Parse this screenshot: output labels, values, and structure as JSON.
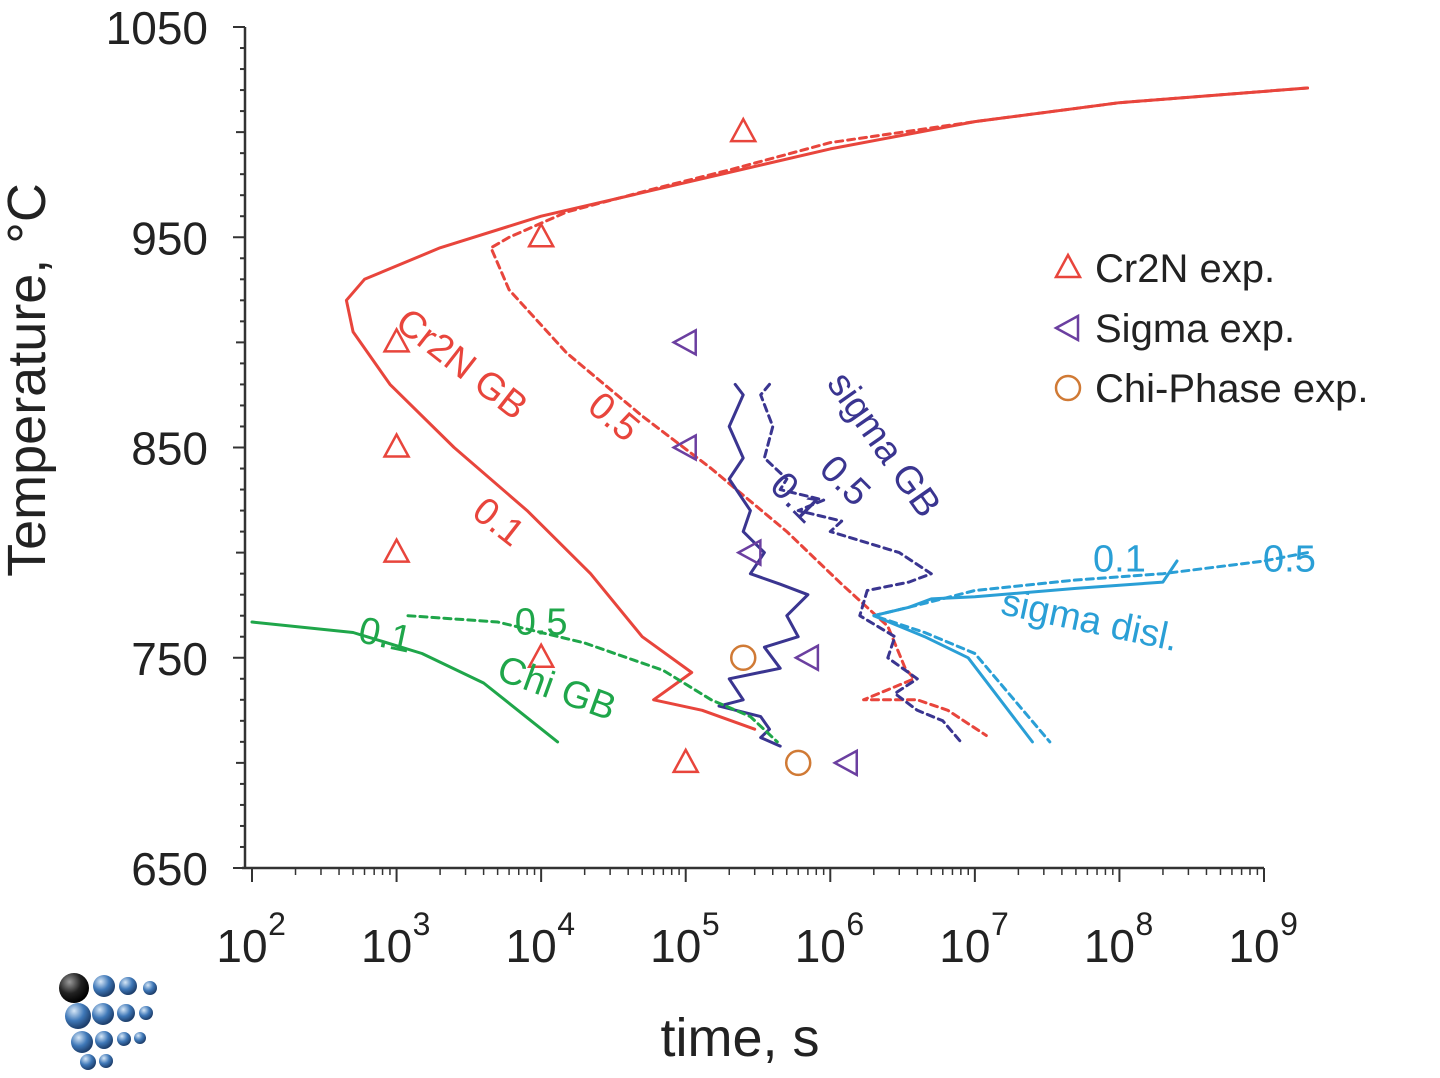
{
  "chart_data": {
    "type": "scatter",
    "title": "",
    "xlabel": "time, s",
    "ylabel": "Temperature, °C",
    "xscale": "log",
    "xlim": [
      100,
      1000000000
    ],
    "ylim": [
      650,
      1050
    ],
    "yticks": [
      650,
      750,
      850,
      950,
      1050
    ],
    "xticks": [
      {
        "value": 100,
        "base": "10",
        "exp": "2"
      },
      {
        "value": 1000,
        "base": "10",
        "exp": "3"
      },
      {
        "value": 10000,
        "base": "10",
        "exp": "4"
      },
      {
        "value": 100000,
        "base": "10",
        "exp": "5"
      },
      {
        "value": 1000000,
        "base": "10",
        "exp": "6"
      },
      {
        "value": 10000000,
        "base": "10",
        "exp": "7"
      },
      {
        "value": 100000000,
        "base": "10",
        "exp": "8"
      },
      {
        "value": 1000000000,
        "base": "10",
        "exp": "9"
      }
    ],
    "grid": false,
    "legend_position": "top-right",
    "colors": {
      "cr2n": "#e8453c",
      "sigma_gb": "#3a3590",
      "sigma_disl": "#2a9fd6",
      "chi": "#1fa64a",
      "sigma_exp": "#6b3fa0",
      "chi_exp": "#d07a35",
      "axis": "#333333"
    },
    "legend": [
      {
        "label": "Cr2N exp.",
        "marker": "triangle-up",
        "color": "#e8453c"
      },
      {
        "label": "Sigma exp.",
        "marker": "triangle-left",
        "color": "#6b3fa0"
      },
      {
        "label": "Chi-Phase exp.",
        "marker": "circle",
        "color": "#d07a35"
      }
    ],
    "scatter_series": [
      {
        "name": "Cr2N exp.",
        "marker": "triangle-up",
        "color": "#e8453c",
        "points": [
          [
            250000,
            1000
          ],
          [
            10000,
            950
          ],
          [
            1000,
            900
          ],
          [
            1000,
            850
          ],
          [
            1000,
            800
          ],
          [
            10000,
            750
          ],
          [
            100000,
            700
          ]
        ]
      },
      {
        "name": "Sigma exp.",
        "marker": "triangle-left",
        "color": "#6b3fa0",
        "points": [
          [
            100000,
            900
          ],
          [
            100000,
            850
          ],
          [
            280000,
            800
          ],
          [
            700000,
            750
          ],
          [
            1300000,
            700
          ]
        ]
      },
      {
        "name": "Chi-Phase exp.",
        "marker": "circle",
        "color": "#d07a35",
        "points": [
          [
            250000,
            750
          ],
          [
            600000,
            700
          ]
        ]
      }
    ],
    "line_series": [
      {
        "curve": "Cr2N GB",
        "fraction": "0.1",
        "color": "#e8453c",
        "dashed": false,
        "points": [
          [
            2000000000,
            1021
          ],
          [
            100000000,
            1014
          ],
          [
            10000000,
            1005
          ],
          [
            1000000,
            992
          ],
          [
            100000,
            976
          ],
          [
            10000,
            960
          ],
          [
            2000,
            945
          ],
          [
            600,
            930
          ],
          [
            450,
            920
          ],
          [
            500,
            905
          ],
          [
            900,
            880
          ],
          [
            2500,
            850
          ],
          [
            8000,
            820
          ],
          [
            22000,
            790
          ],
          [
            50000,
            760
          ],
          [
            110000,
            743
          ],
          [
            60000,
            730
          ],
          [
            130000,
            725
          ],
          [
            300000,
            716
          ]
        ]
      },
      {
        "curve": "Cr2N GB",
        "fraction": "0.5",
        "color": "#e8453c",
        "dashed": true,
        "points": [
          [
            2000000000,
            1021
          ],
          [
            100000000,
            1014
          ],
          [
            10000000,
            1005
          ],
          [
            1000000,
            995
          ],
          [
            200000,
            982
          ],
          [
            60000,
            973
          ],
          [
            15000,
            962
          ],
          [
            6000,
            950
          ],
          [
            4500,
            945
          ],
          [
            6000,
            925
          ],
          [
            15000,
            895
          ],
          [
            50000,
            865
          ],
          [
            150000,
            840
          ],
          [
            500000,
            810
          ],
          [
            1200000,
            785
          ],
          [
            2500000,
            765
          ],
          [
            3300000,
            745
          ],
          [
            3800000,
            740
          ],
          [
            1700000,
            730
          ],
          [
            4000000,
            730
          ],
          [
            6500000,
            725
          ],
          [
            12000000,
            713
          ]
        ]
      },
      {
        "curve": "sigma GB",
        "fraction": "0.1",
        "color": "#3a3590",
        "dashed": false,
        "points": [
          [
            220000,
            880
          ],
          [
            250000,
            875
          ],
          [
            200000,
            860
          ],
          [
            250000,
            845
          ],
          [
            200000,
            835
          ],
          [
            280000,
            820
          ],
          [
            250000,
            810
          ],
          [
            350000,
            800
          ],
          [
            280000,
            790
          ],
          [
            450000,
            785
          ],
          [
            700000,
            780
          ],
          [
            500000,
            770
          ],
          [
            600000,
            760
          ],
          [
            350000,
            755
          ],
          [
            450000,
            745
          ],
          [
            200000,
            740
          ],
          [
            250000,
            730
          ],
          [
            170000,
            727
          ],
          [
            330000,
            722
          ],
          [
            380000,
            716
          ],
          [
            330000,
            712
          ],
          [
            450000,
            708
          ]
        ]
      },
      {
        "curve": "sigma GB",
        "fraction": "0.5",
        "color": "#3a3590",
        "dashed": true,
        "points": [
          [
            380000,
            880
          ],
          [
            330000,
            875
          ],
          [
            400000,
            860
          ],
          [
            350000,
            845
          ],
          [
            500000,
            835
          ],
          [
            450000,
            830
          ],
          [
            900000,
            825
          ],
          [
            600000,
            820
          ],
          [
            1200000,
            815
          ],
          [
            1000000,
            810
          ],
          [
            3000000,
            800
          ],
          [
            5000000,
            790
          ],
          [
            3500000,
            786
          ],
          [
            1800000,
            782
          ],
          [
            1600000,
            770
          ],
          [
            2800000,
            760
          ],
          [
            2500000,
            750
          ],
          [
            4000000,
            740
          ],
          [
            2800000,
            733
          ],
          [
            4000000,
            725
          ],
          [
            6000000,
            720
          ],
          [
            8000000,
            710
          ]
        ]
      },
      {
        "curve": "sigma disl.",
        "fraction": "0.1",
        "color": "#2a9fd6",
        "dashed": false,
        "points": [
          [
            250000000,
            796
          ],
          [
            200000000,
            786
          ],
          [
            50000000,
            783
          ],
          [
            10000000,
            779
          ],
          [
            5000000,
            778
          ],
          [
            3500000,
            774
          ],
          [
            2000000,
            770
          ],
          [
            4500000,
            760
          ],
          [
            9000000,
            750
          ],
          [
            25000000,
            710
          ]
        ]
      },
      {
        "curve": "sigma disl.",
        "fraction": "0.5",
        "color": "#2a9fd6",
        "dashed": true,
        "points": [
          [
            2000000000,
            800
          ],
          [
            1000000000,
            796
          ],
          [
            200000000,
            790
          ],
          [
            50000000,
            787
          ],
          [
            10000000,
            782
          ],
          [
            4000000,
            775
          ],
          [
            2000000,
            770
          ],
          [
            4500000,
            762
          ],
          [
            10000000,
            752
          ],
          [
            33000000,
            710
          ]
        ]
      },
      {
        "curve": "Chi GB",
        "fraction": "0.1",
        "color": "#1fa64a",
        "dashed": false,
        "points": [
          [
            100,
            767
          ],
          [
            500,
            762
          ],
          [
            1500,
            752
          ],
          [
            4000,
            738
          ],
          [
            13000,
            710
          ]
        ]
      },
      {
        "curve": "Chi GB",
        "fraction": "0.5",
        "color": "#1fa64a",
        "dashed": true,
        "points": [
          [
            1200,
            770
          ],
          [
            5000,
            767
          ],
          [
            20000,
            757
          ],
          [
            70000,
            744
          ],
          [
            150000,
            730
          ],
          [
            280000,
            722
          ],
          [
            430000,
            710
          ]
        ]
      }
    ],
    "annotations": [
      {
        "text": "Cr2N GB",
        "color": "#e8453c",
        "x": 2500,
        "y": 885,
        "angle": 38
      },
      {
        "text": "0.1",
        "color": "#e8453c",
        "x": 4500,
        "y": 810,
        "angle": 38
      },
      {
        "text": "0.5",
        "color": "#e8453c",
        "x": 28000,
        "y": 860,
        "angle": 40
      },
      {
        "text": "sigma GB",
        "color": "#3a3590",
        "x": 2000000,
        "y": 848,
        "angle": 55
      },
      {
        "text": "0.1",
        "color": "#3a3590",
        "x": 500000,
        "y": 822,
        "angle": 45
      },
      {
        "text": "0.5",
        "color": "#3a3590",
        "x": 1100000,
        "y": 830,
        "angle": 45
      },
      {
        "text": "sigma disl.",
        "color": "#2a9fd6",
        "x": 60000000,
        "y": 762,
        "angle": 12
      },
      {
        "text": "0.1",
        "color": "#2a9fd6",
        "x": 100000000,
        "y": 791,
        "angle": 0
      },
      {
        "text": "0.5",
        "color": "#2a9fd6",
        "x": 1500000000,
        "y": 791,
        "angle": 0
      },
      {
        "text": "Chi GB",
        "color": "#1fa64a",
        "x": 12000,
        "y": 730,
        "angle": 20
      },
      {
        "text": "0.1",
        "color": "#1fa64a",
        "x": 800,
        "y": 755,
        "angle": 12
      },
      {
        "text": "0.5",
        "color": "#1fa64a",
        "x": 10000,
        "y": 761,
        "angle": 0
      }
    ]
  }
}
